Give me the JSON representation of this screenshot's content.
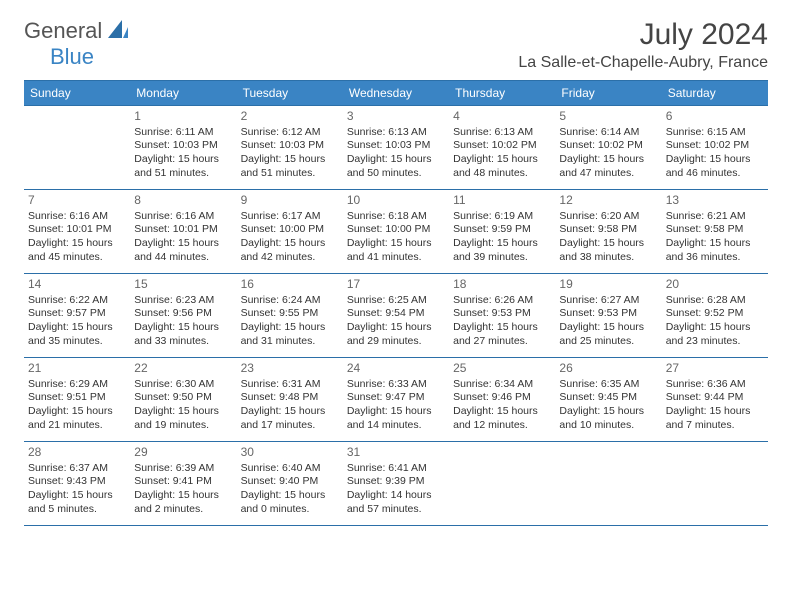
{
  "brand": {
    "word1": "General",
    "word2": "Blue"
  },
  "colors": {
    "accent": "#3a84c4",
    "divider": "#2b6fa8",
    "text": "#333333",
    "headerText": "#444444",
    "background": "#ffffff"
  },
  "typography": {
    "titleSize": 30,
    "locationSize": 16,
    "dayHeaderSize": 12,
    "dayNumSize": 12,
    "bodySize": 10.5,
    "family": "Arial"
  },
  "title": "July 2024",
  "location": "La Salle-et-Chapelle-Aubry, France",
  "dayHeaders": [
    "Sunday",
    "Monday",
    "Tuesday",
    "Wednesday",
    "Thursday",
    "Friday",
    "Saturday"
  ],
  "weeks": [
    [
      {
        "n": "",
        "sr": "",
        "ss": "",
        "dl": ""
      },
      {
        "n": "1",
        "sr": "Sunrise: 6:11 AM",
        "ss": "Sunset: 10:03 PM",
        "dl": "Daylight: 15 hours and 51 minutes."
      },
      {
        "n": "2",
        "sr": "Sunrise: 6:12 AM",
        "ss": "Sunset: 10:03 PM",
        "dl": "Daylight: 15 hours and 51 minutes."
      },
      {
        "n": "3",
        "sr": "Sunrise: 6:13 AM",
        "ss": "Sunset: 10:03 PM",
        "dl": "Daylight: 15 hours and 50 minutes."
      },
      {
        "n": "4",
        "sr": "Sunrise: 6:13 AM",
        "ss": "Sunset: 10:02 PM",
        "dl": "Daylight: 15 hours and 48 minutes."
      },
      {
        "n": "5",
        "sr": "Sunrise: 6:14 AM",
        "ss": "Sunset: 10:02 PM",
        "dl": "Daylight: 15 hours and 47 minutes."
      },
      {
        "n": "6",
        "sr": "Sunrise: 6:15 AM",
        "ss": "Sunset: 10:02 PM",
        "dl": "Daylight: 15 hours and 46 minutes."
      }
    ],
    [
      {
        "n": "7",
        "sr": "Sunrise: 6:16 AM",
        "ss": "Sunset: 10:01 PM",
        "dl": "Daylight: 15 hours and 45 minutes."
      },
      {
        "n": "8",
        "sr": "Sunrise: 6:16 AM",
        "ss": "Sunset: 10:01 PM",
        "dl": "Daylight: 15 hours and 44 minutes."
      },
      {
        "n": "9",
        "sr": "Sunrise: 6:17 AM",
        "ss": "Sunset: 10:00 PM",
        "dl": "Daylight: 15 hours and 42 minutes."
      },
      {
        "n": "10",
        "sr": "Sunrise: 6:18 AM",
        "ss": "Sunset: 10:00 PM",
        "dl": "Daylight: 15 hours and 41 minutes."
      },
      {
        "n": "11",
        "sr": "Sunrise: 6:19 AM",
        "ss": "Sunset: 9:59 PM",
        "dl": "Daylight: 15 hours and 39 minutes."
      },
      {
        "n": "12",
        "sr": "Sunrise: 6:20 AM",
        "ss": "Sunset: 9:58 PM",
        "dl": "Daylight: 15 hours and 38 minutes."
      },
      {
        "n": "13",
        "sr": "Sunrise: 6:21 AM",
        "ss": "Sunset: 9:58 PM",
        "dl": "Daylight: 15 hours and 36 minutes."
      }
    ],
    [
      {
        "n": "14",
        "sr": "Sunrise: 6:22 AM",
        "ss": "Sunset: 9:57 PM",
        "dl": "Daylight: 15 hours and 35 minutes."
      },
      {
        "n": "15",
        "sr": "Sunrise: 6:23 AM",
        "ss": "Sunset: 9:56 PM",
        "dl": "Daylight: 15 hours and 33 minutes."
      },
      {
        "n": "16",
        "sr": "Sunrise: 6:24 AM",
        "ss": "Sunset: 9:55 PM",
        "dl": "Daylight: 15 hours and 31 minutes."
      },
      {
        "n": "17",
        "sr": "Sunrise: 6:25 AM",
        "ss": "Sunset: 9:54 PM",
        "dl": "Daylight: 15 hours and 29 minutes."
      },
      {
        "n": "18",
        "sr": "Sunrise: 6:26 AM",
        "ss": "Sunset: 9:53 PM",
        "dl": "Daylight: 15 hours and 27 minutes."
      },
      {
        "n": "19",
        "sr": "Sunrise: 6:27 AM",
        "ss": "Sunset: 9:53 PM",
        "dl": "Daylight: 15 hours and 25 minutes."
      },
      {
        "n": "20",
        "sr": "Sunrise: 6:28 AM",
        "ss": "Sunset: 9:52 PM",
        "dl": "Daylight: 15 hours and 23 minutes."
      }
    ],
    [
      {
        "n": "21",
        "sr": "Sunrise: 6:29 AM",
        "ss": "Sunset: 9:51 PM",
        "dl": "Daylight: 15 hours and 21 minutes."
      },
      {
        "n": "22",
        "sr": "Sunrise: 6:30 AM",
        "ss": "Sunset: 9:50 PM",
        "dl": "Daylight: 15 hours and 19 minutes."
      },
      {
        "n": "23",
        "sr": "Sunrise: 6:31 AM",
        "ss": "Sunset: 9:48 PM",
        "dl": "Daylight: 15 hours and 17 minutes."
      },
      {
        "n": "24",
        "sr": "Sunrise: 6:33 AM",
        "ss": "Sunset: 9:47 PM",
        "dl": "Daylight: 15 hours and 14 minutes."
      },
      {
        "n": "25",
        "sr": "Sunrise: 6:34 AM",
        "ss": "Sunset: 9:46 PM",
        "dl": "Daylight: 15 hours and 12 minutes."
      },
      {
        "n": "26",
        "sr": "Sunrise: 6:35 AM",
        "ss": "Sunset: 9:45 PM",
        "dl": "Daylight: 15 hours and 10 minutes."
      },
      {
        "n": "27",
        "sr": "Sunrise: 6:36 AM",
        "ss": "Sunset: 9:44 PM",
        "dl": "Daylight: 15 hours and 7 minutes."
      }
    ],
    [
      {
        "n": "28",
        "sr": "Sunrise: 6:37 AM",
        "ss": "Sunset: 9:43 PM",
        "dl": "Daylight: 15 hours and 5 minutes."
      },
      {
        "n": "29",
        "sr": "Sunrise: 6:39 AM",
        "ss": "Sunset: 9:41 PM",
        "dl": "Daylight: 15 hours and 2 minutes."
      },
      {
        "n": "30",
        "sr": "Sunrise: 6:40 AM",
        "ss": "Sunset: 9:40 PM",
        "dl": "Daylight: 15 hours and 0 minutes."
      },
      {
        "n": "31",
        "sr": "Sunrise: 6:41 AM",
        "ss": "Sunset: 9:39 PM",
        "dl": "Daylight: 14 hours and 57 minutes."
      },
      {
        "n": "",
        "sr": "",
        "ss": "",
        "dl": ""
      },
      {
        "n": "",
        "sr": "",
        "ss": "",
        "dl": ""
      },
      {
        "n": "",
        "sr": "",
        "ss": "",
        "dl": ""
      }
    ]
  ]
}
